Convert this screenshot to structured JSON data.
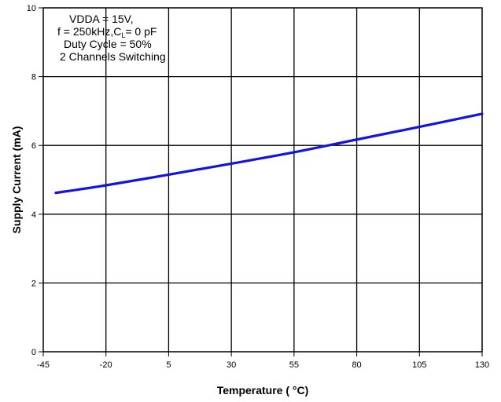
{
  "chart_data": {
    "type": "line",
    "title": "",
    "xlabel": "Temperature ( °C)",
    "ylabel": "Supply Current (mA)",
    "xlim": [
      -45,
      130
    ],
    "ylim": [
      0,
      10
    ],
    "x_ticks": [
      -45,
      -20,
      5,
      30,
      55,
      80,
      105,
      130
    ],
    "y_ticks": [
      0,
      2,
      4,
      6,
      8,
      10
    ],
    "grid": true,
    "annotation": {
      "line1": "VDDA = 15V,",
      "line2_prefix": "f = 250kHz,C",
      "line2_sub": "L",
      "line2_suffix": "= 0 pF",
      "line3": "Duty Cycle = 50%",
      "line4": "2 Channels Switching"
    },
    "series": [
      {
        "color": "#1414e0",
        "x": [
          -40,
          -20,
          5,
          30,
          55,
          80,
          105,
          130
        ],
        "y": [
          4.62,
          4.84,
          5.15,
          5.47,
          5.8,
          6.17,
          6.54,
          6.92
        ]
      }
    ]
  }
}
